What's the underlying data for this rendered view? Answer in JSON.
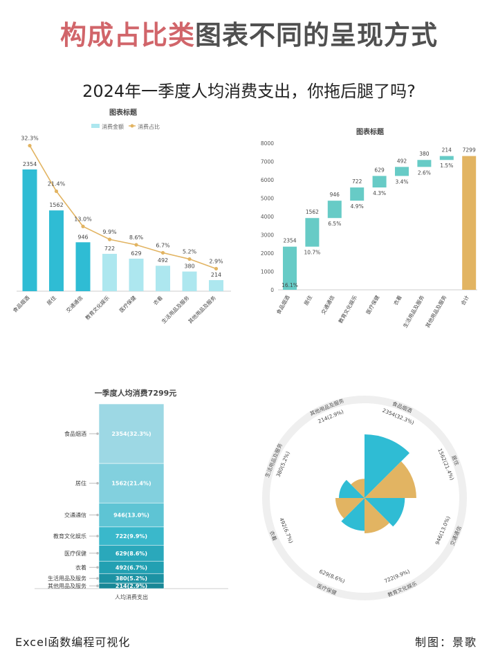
{
  "header": {
    "title_highlight": "构成占比类",
    "title_rest": "图表不同的呈现方式",
    "subtitle": "2024年一季度人均消费支出，你拖后腿了吗?"
  },
  "footer": {
    "left": "Excel函数编程可视化",
    "right": "制图：景歌"
  },
  "colors": {
    "teal_dark": "#2fbcd4",
    "teal_light": "#ade7ef",
    "line": "#e2b462",
    "wf_bar": "#67cbc6",
    "wf_total": "#e2b462",
    "stack": [
      "#9dd8e4",
      "#82d0de",
      "#5ec4d4",
      "#3ab8cb",
      "#2aa8bb",
      "#22a0b2",
      "#1c92a3",
      "#188796"
    ],
    "rose_a": "#2fbcd4",
    "rose_b": "#e2b462",
    "rose_ring": "#efefef"
  },
  "chart_data": [
    {
      "type": "bar",
      "title": "图表标题",
      "legend": [
        "消费金额",
        "消费占比"
      ],
      "legend_position": "top",
      "categories": [
        "食品烟酒",
        "居住",
        "交通通信",
        "教育文化娱乐",
        "医疗保健",
        "衣着",
        "生活用品及服务",
        "其他用品及服务"
      ],
      "series": [
        {
          "name": "消费金额",
          "values": [
            2354,
            1562,
            946,
            722,
            629,
            492,
            380,
            214
          ],
          "labels": [
            "2354",
            "1562",
            "946",
            "722",
            "629",
            "492",
            "380",
            "214"
          ]
        },
        {
          "name": "消费占比",
          "type": "line",
          "values": [
            32.3,
            21.4,
            13.0,
            9.9,
            8.6,
            6.7,
            5.2,
            2.9
          ],
          "labels": [
            "32.3%",
            "21.4%",
            "13.0%",
            "9.9%",
            "8.6%",
            "6.7%",
            "5.2%",
            "2.9%"
          ]
        }
      ],
      "ylim": [
        0,
        2600
      ],
      "y2lim": [
        0,
        40
      ]
    },
    {
      "type": "bar",
      "subtype": "waterfall",
      "title": "图表标题",
      "categories": [
        "食品烟酒",
        "居住",
        "交通通信",
        "教育文化娱乐",
        "医疗保健",
        "衣着",
        "生活用品及服务",
        "其他用品及服务",
        "合计"
      ],
      "values": [
        2354,
        1562,
        946,
        722,
        629,
        492,
        380,
        214,
        7299
      ],
      "value_labels": [
        "2354",
        "1562",
        "946",
        "722",
        "629",
        "492",
        "380",
        "214",
        "7299"
      ],
      "pct_labels": [
        "16.1%",
        "10.7%",
        "6.5%",
        "4.9%",
        "4.3%",
        "3.4%",
        "2.6%",
        "1.5%",
        ""
      ],
      "yticks": [
        "0",
        "1000",
        "2000",
        "3000",
        "4000",
        "5000",
        "6000",
        "7000",
        "8000"
      ],
      "ylim": [
        0,
        8000
      ]
    },
    {
      "type": "bar",
      "subtype": "stacked",
      "title": "一季度人均消费7299元",
      "xlabel": "人均消费支出",
      "categories": [
        "食品烟酒",
        "居住",
        "交通通信",
        "教育文化娱乐",
        "医疗保健",
        "衣着",
        "生活用品及服务",
        "其他用品及服务"
      ],
      "values": [
        2354,
        1562,
        946,
        722,
        629,
        492,
        380,
        214
      ],
      "labels": [
        "2354(32.3%)",
        "1562(21.4%)",
        "946(13.0%)",
        "722(9.9%)",
        "629(8.6%)",
        "492(6.7%)",
        "380(5.2%)",
        "214(2.9%)"
      ],
      "total": 7299
    },
    {
      "type": "pie",
      "subtype": "rose",
      "categories": [
        "食品烟酒",
        "居住",
        "交通通信",
        "教育文化娱乐",
        "医疗保健",
        "衣着",
        "生活用品及服务",
        "其他用品及服务"
      ],
      "values": [
        2354,
        1562,
        946,
        722,
        629,
        492,
        380,
        214
      ],
      "labels": [
        "2354(32.3%)",
        "1562(21.4%)",
        "946(13.0%)",
        "722(9.9%)",
        "629(8.6%)",
        "492(6.7%)",
        "380(5.2%)",
        "214(2.9%)"
      ]
    }
  ]
}
